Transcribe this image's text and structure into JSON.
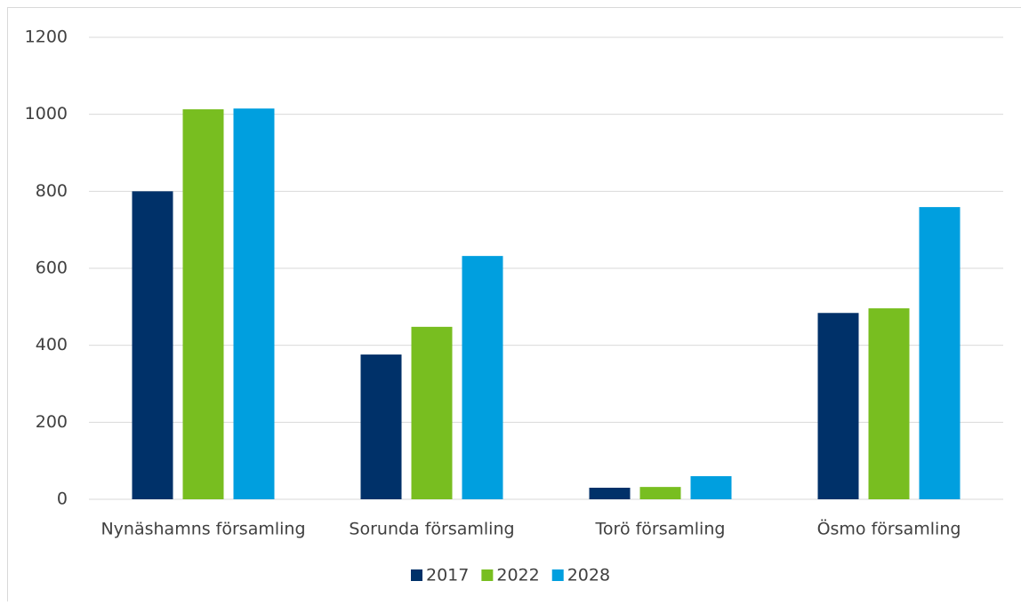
{
  "chart_data": {
    "type": "bar",
    "categories": [
      "Nynäshamns församling",
      "Sorunda församling",
      "Torö församling",
      "Ösmo församling"
    ],
    "series": [
      {
        "name": "2017",
        "color": "#003169",
        "values": [
          800,
          376,
          30,
          484
        ]
      },
      {
        "name": "2022",
        "color": "#78be20",
        "values": [
          1013,
          448,
          32,
          496
        ]
      },
      {
        "name": "2028",
        "color": "#009fdf",
        "values": [
          1015,
          632,
          60,
          759
        ]
      }
    ],
    "ylim": [
      0,
      1200
    ],
    "yticks": [
      0,
      200,
      400,
      600,
      800,
      1000,
      1200
    ],
    "grid": true,
    "legend": "bottom"
  }
}
